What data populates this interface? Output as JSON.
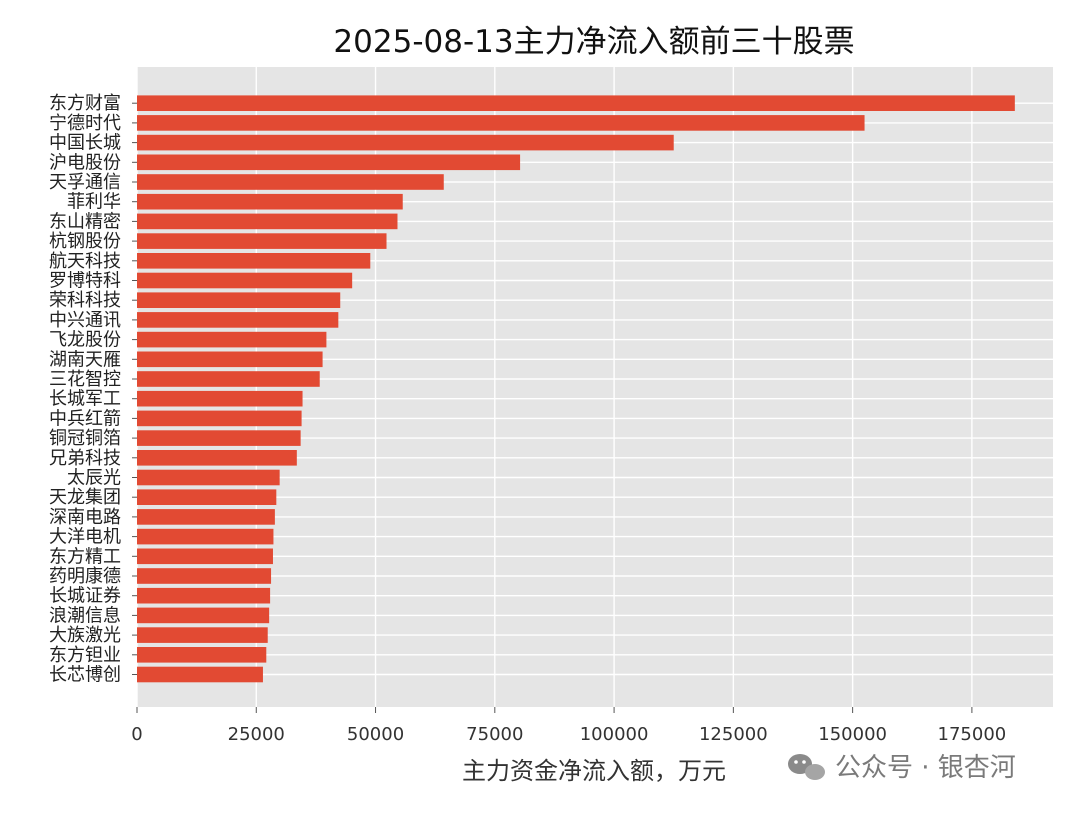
{
  "chart_data": {
    "type": "bar",
    "orientation": "horizontal",
    "title": "2025-08-13主力净流入额前三十股票",
    "xlabel": "主力资金净流入额，万元",
    "ylabel": "",
    "xlim": [
      0,
      192000
    ],
    "xticks": [
      0,
      25000,
      50000,
      75000,
      100000,
      125000,
      150000,
      175000
    ],
    "grid": true,
    "bar_color": "#E24A33",
    "background_color": "#E5E5E5",
    "grid_color": "#FFFFFF",
    "categories": [
      "东方财富",
      "宁德时代",
      "中国长城",
      "沪电股份",
      "天孚通信",
      "菲利华",
      "东山精密",
      "杭钢股份",
      "航天科技",
      "罗博特科",
      "荣科科技",
      "中兴通讯",
      "飞龙股份",
      "湖南天雁",
      "三花智控",
      "长城军工",
      "中兵红箭",
      "铜冠铜箔",
      "兄弟科技",
      "太辰光",
      "天龙集团",
      "深南电路",
      "大洋电机",
      "东方精工",
      "药明康德",
      "长城证券",
      "浪潮信息",
      "大族激光",
      "东方钽业",
      "长芯博创"
    ],
    "values": [
      184000,
      152500,
      112500,
      80300,
      64300,
      55700,
      54600,
      52300,
      48900,
      45100,
      42600,
      42200,
      39700,
      38900,
      38300,
      34700,
      34500,
      34300,
      33500,
      29900,
      29200,
      28900,
      28600,
      28500,
      28100,
      27900,
      27700,
      27400,
      27100,
      26400
    ]
  },
  "watermark": {
    "icon": "wechat-icon",
    "text": "公众号 · 银杏河"
  }
}
